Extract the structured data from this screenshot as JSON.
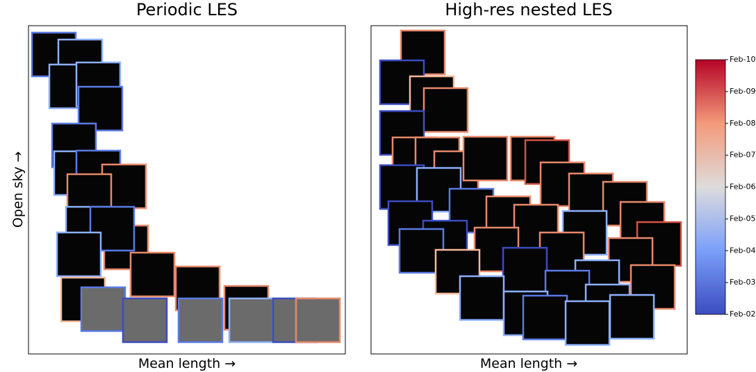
{
  "panels": [
    {
      "title": "Periodic LES",
      "x_label": "Mean length →",
      "y_label": "Open sky →"
    },
    {
      "title": "High-res nested LES",
      "x_label": "Mean length →"
    }
  ],
  "colorbar": {
    "ticks": [
      "Feb-02",
      "Feb-03",
      "Feb-04",
      "Feb-05",
      "Feb-06",
      "Feb-07",
      "Feb-08",
      "Feb-09",
      "Feb-10"
    ]
  }
}
